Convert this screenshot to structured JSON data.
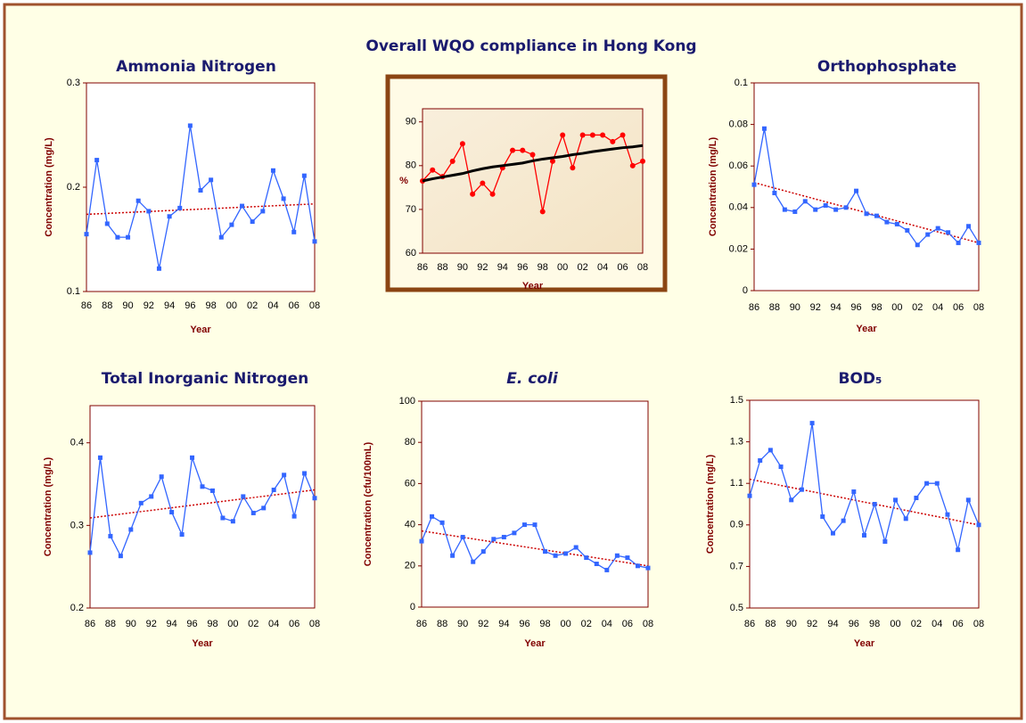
{
  "chart_data": [
    {
      "type": "line",
      "title": "Ammonia Nitrogen",
      "xlabel": "Year",
      "ylabel": "Concentration (mg/L)",
      "categories": [
        "86",
        null,
        "88",
        null,
        "90",
        null,
        "92",
        null,
        "94",
        null,
        "96",
        null,
        "98",
        null,
        "00",
        null,
        "02",
        null,
        "04",
        null,
        "06",
        null,
        "08"
      ],
      "ylim": [
        0.1,
        0.3
      ],
      "yticks": [
        0.1,
        0.2,
        0.3
      ],
      "series": [
        {
          "color": "#3366ff",
          "marker": "square",
          "values": [
            0.155,
            0.226,
            0.165,
            0.152,
            0.152,
            0.187,
            0.177,
            0.122,
            0.172,
            0.18,
            0.259,
            0.197,
            0.207,
            0.152,
            0.164,
            0.182,
            0.167,
            0.177,
            0.216,
            0.189,
            0.157,
            0.211,
            0.148
          ]
        }
      ],
      "trend": {
        "color": "#cc0000",
        "values": [
          0.174,
          0.184
        ]
      }
    },
    {
      "type": "line",
      "title": "Overall WQO compliance in Hong Kong",
      "xlabel": "Year",
      "ylabel": "%",
      "categories": [
        "86",
        null,
        "88",
        null,
        "90",
        null,
        "92",
        null,
        "94",
        null,
        "96",
        null,
        "98",
        null,
        "00",
        null,
        "02",
        null,
        "04",
        null,
        "06",
        null,
        "08"
      ],
      "ylim": [
        60,
        93
      ],
      "yticks": [
        60,
        70,
        80,
        90
      ],
      "series": [
        {
          "color": "#ff0000",
          "marker": "circle",
          "values": [
            76.5,
            79,
            77.5,
            81,
            85,
            73.5,
            76,
            73.5,
            79.5,
            83.5,
            83.5,
            82.5,
            69.5,
            81,
            87,
            79.5,
            87,
            87,
            87,
            85.5,
            87,
            80,
            81
          ]
        },
        {
          "color": "#000000",
          "width": 3,
          "values": [
            76.5,
            77,
            77.4,
            77.8,
            78.2,
            78.8,
            79.3,
            79.7,
            80,
            80.3,
            80.6,
            81.1,
            81.5,
            81.8,
            82.1,
            82.5,
            82.8,
            83.2,
            83.5,
            83.8,
            84.1,
            84.3,
            84.6
          ]
        }
      ]
    },
    {
      "type": "line",
      "title": "Orthophosphate",
      "xlabel": "Year",
      "ylabel": "Concentration (mg/L)",
      "categories": [
        "86",
        null,
        "88",
        null,
        "90",
        null,
        "92",
        null,
        "94",
        null,
        "96",
        null,
        "98",
        null,
        "00",
        null,
        "02",
        null,
        "04",
        null,
        "06",
        null,
        "08"
      ],
      "ylim": [
        0,
        0.1
      ],
      "yticks": [
        0,
        0.02,
        0.04,
        0.06,
        0.08,
        0.1
      ],
      "series": [
        {
          "color": "#3366ff",
          "marker": "square",
          "values": [
            0.051,
            0.078,
            0.047,
            0.039,
            0.038,
            0.043,
            0.039,
            0.041,
            0.039,
            0.04,
            0.048,
            0.037,
            0.036,
            0.033,
            0.032,
            0.029,
            0.022,
            0.027,
            0.03,
            0.028,
            0.023,
            0.031,
            0.023
          ]
        }
      ],
      "trend": {
        "color": "#cc0000",
        "values": [
          0.052,
          0.023
        ]
      }
    },
    {
      "type": "line",
      "title": "Total Inorganic Nitrogen",
      "xlabel": "Year",
      "ylabel": "Concentration (mg/L)",
      "categories": [
        "86",
        null,
        "88",
        null,
        "90",
        null,
        "92",
        null,
        "94",
        null,
        "96",
        null,
        "98",
        null,
        "00",
        null,
        "02",
        null,
        "04",
        null,
        "06",
        null,
        "08"
      ],
      "ylim": [
        0.2,
        0.445
      ],
      "yticks": [
        0.2,
        0.3,
        0.4
      ],
      "series": [
        {
          "color": "#3366ff",
          "marker": "square",
          "values": [
            0.267,
            0.382,
            0.287,
            0.263,
            0.295,
            0.327,
            0.335,
            0.359,
            0.316,
            0.289,
            0.382,
            0.347,
            0.342,
            0.309,
            0.305,
            0.335,
            0.315,
            0.321,
            0.343,
            0.361,
            0.311,
            0.363,
            0.333
          ]
        }
      ],
      "trend": {
        "color": "#cc0000",
        "values": [
          0.309,
          0.343
        ]
      }
    },
    {
      "type": "line",
      "title": "E. coli",
      "title_style": "italic",
      "xlabel": "Year",
      "ylabel": "Concentration (cfu/100mL)",
      "categories": [
        "86",
        null,
        "88",
        null,
        "90",
        null,
        "92",
        null,
        "94",
        null,
        "96",
        null,
        "98",
        null,
        "00",
        null,
        "02",
        null,
        "04",
        null,
        "06",
        null,
        "08"
      ],
      "ylim": [
        0,
        100
      ],
      "yticks": [
        0,
        20,
        40,
        60,
        80,
        100
      ],
      "series": [
        {
          "color": "#3366ff",
          "marker": "square",
          "values": [
            32,
            44,
            41,
            25,
            34,
            22,
            27,
            33,
            34,
            36,
            40,
            40,
            27,
            25,
            26,
            29,
            24,
            21,
            18,
            25,
            24,
            20,
            19
          ]
        }
      ],
      "trend": {
        "color": "#cc0000",
        "values": [
          37,
          20
        ]
      }
    },
    {
      "type": "line",
      "title": "BOD₅",
      "xlabel": "Year",
      "ylabel": "Concentration (mg/L)",
      "categories": [
        "86",
        null,
        "88",
        null,
        "90",
        null,
        "92",
        null,
        "94",
        null,
        "96",
        null,
        "98",
        null,
        "00",
        null,
        "02",
        null,
        "04",
        null,
        "06",
        null,
        "08"
      ],
      "ylim": [
        0.5,
        1.5
      ],
      "yticks": [
        0.5,
        0.7,
        0.9,
        1.1,
        1.3,
        1.5
      ],
      "series": [
        {
          "color": "#3366ff",
          "marker": "square",
          "values": [
            1.04,
            1.21,
            1.26,
            1.18,
            1.02,
            1.07,
            1.39,
            0.94,
            0.86,
            0.92,
            1.06,
            0.85,
            1.0,
            0.82,
            1.02,
            0.93,
            1.03,
            1.1,
            1.1,
            0.95,
            0.78,
            1.02,
            0.9
          ]
        }
      ],
      "trend": {
        "color": "#cc0000",
        "values": [
          1.12,
          0.9
        ]
      }
    }
  ]
}
